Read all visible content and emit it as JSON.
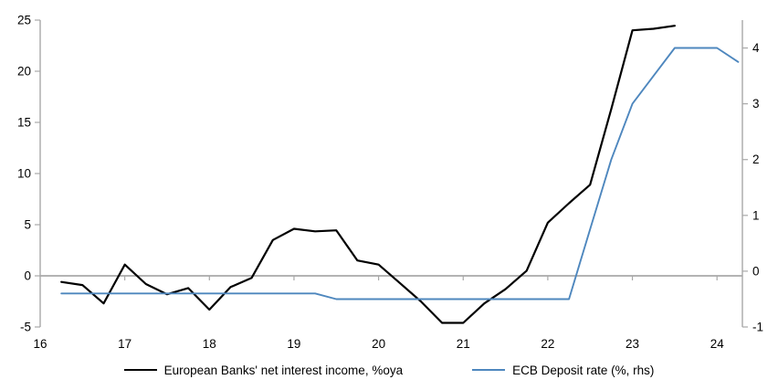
{
  "chart_data": {
    "type": "line",
    "title": "",
    "xlabel": "",
    "ylabel_left": "",
    "ylabel_right": "",
    "grid": false,
    "zero_line": true,
    "legend_position": "bottom",
    "x_axis": {
      "ticks": [
        16,
        17,
        18,
        19,
        20,
        21,
        22,
        23,
        24
      ],
      "lim": [
        16,
        24.3
      ]
    },
    "left_axis": {
      "ticks": [
        -5,
        0,
        5,
        10,
        15,
        20,
        25
      ],
      "lim": [
        -5,
        25
      ]
    },
    "right_axis": {
      "ticks": [
        -1,
        0,
        1,
        2,
        3,
        4
      ],
      "lim": [
        -1,
        4.5
      ]
    },
    "series": [
      {
        "name": "European Banks' net interest income, %oya",
        "axis": "left",
        "color": "#000000",
        "x": [
          16.25,
          16.5,
          16.75,
          17,
          17.25,
          17.5,
          17.75,
          18,
          18.25,
          18.5,
          18.75,
          19,
          19.25,
          19.5,
          19.75,
          20,
          20.25,
          20.5,
          20.75,
          21,
          21.25,
          21.5,
          21.75,
          22,
          22.25,
          22.5,
          22.75,
          23,
          23.25,
          23.5
        ],
        "values": [
          -0.6,
          -0.9,
          -2.7,
          1.1,
          -0.8,
          -1.8,
          -1.2,
          -3.3,
          -1.1,
          -0.2,
          3.5,
          4.6,
          4.35,
          4.45,
          1.5,
          1.1,
          -0.7,
          -2.5,
          -4.6,
          -4.6,
          -2.7,
          -1.3,
          0.5,
          5.2,
          7.1,
          8.9,
          16.3,
          24.0,
          24.15,
          24.45
        ]
      },
      {
        "name": "ECB Deposit rate (%, rhs)",
        "axis": "right",
        "color": "#4e87be",
        "x": [
          16.25,
          16.5,
          16.75,
          17,
          17.25,
          17.5,
          17.75,
          18,
          18.25,
          18.5,
          18.75,
          19,
          19.25,
          19.5,
          19.75,
          20,
          20.25,
          20.5,
          20.75,
          21,
          21.25,
          21.5,
          21.75,
          22,
          22.25,
          22.5,
          22.75,
          23,
          23.25,
          23.5,
          23.75,
          24,
          24.25
        ],
        "values": [
          -0.4,
          -0.4,
          -0.4,
          -0.4,
          -0.4,
          -0.4,
          -0.4,
          -0.4,
          -0.4,
          -0.4,
          -0.4,
          -0.4,
          -0.4,
          -0.5,
          -0.5,
          -0.5,
          -0.5,
          -0.5,
          -0.5,
          -0.5,
          -0.5,
          -0.5,
          -0.5,
          -0.5,
          -0.5,
          0.75,
          2.0,
          3.0,
          3.5,
          4.0,
          4.0,
          4.0,
          3.75
        ]
      }
    ]
  }
}
